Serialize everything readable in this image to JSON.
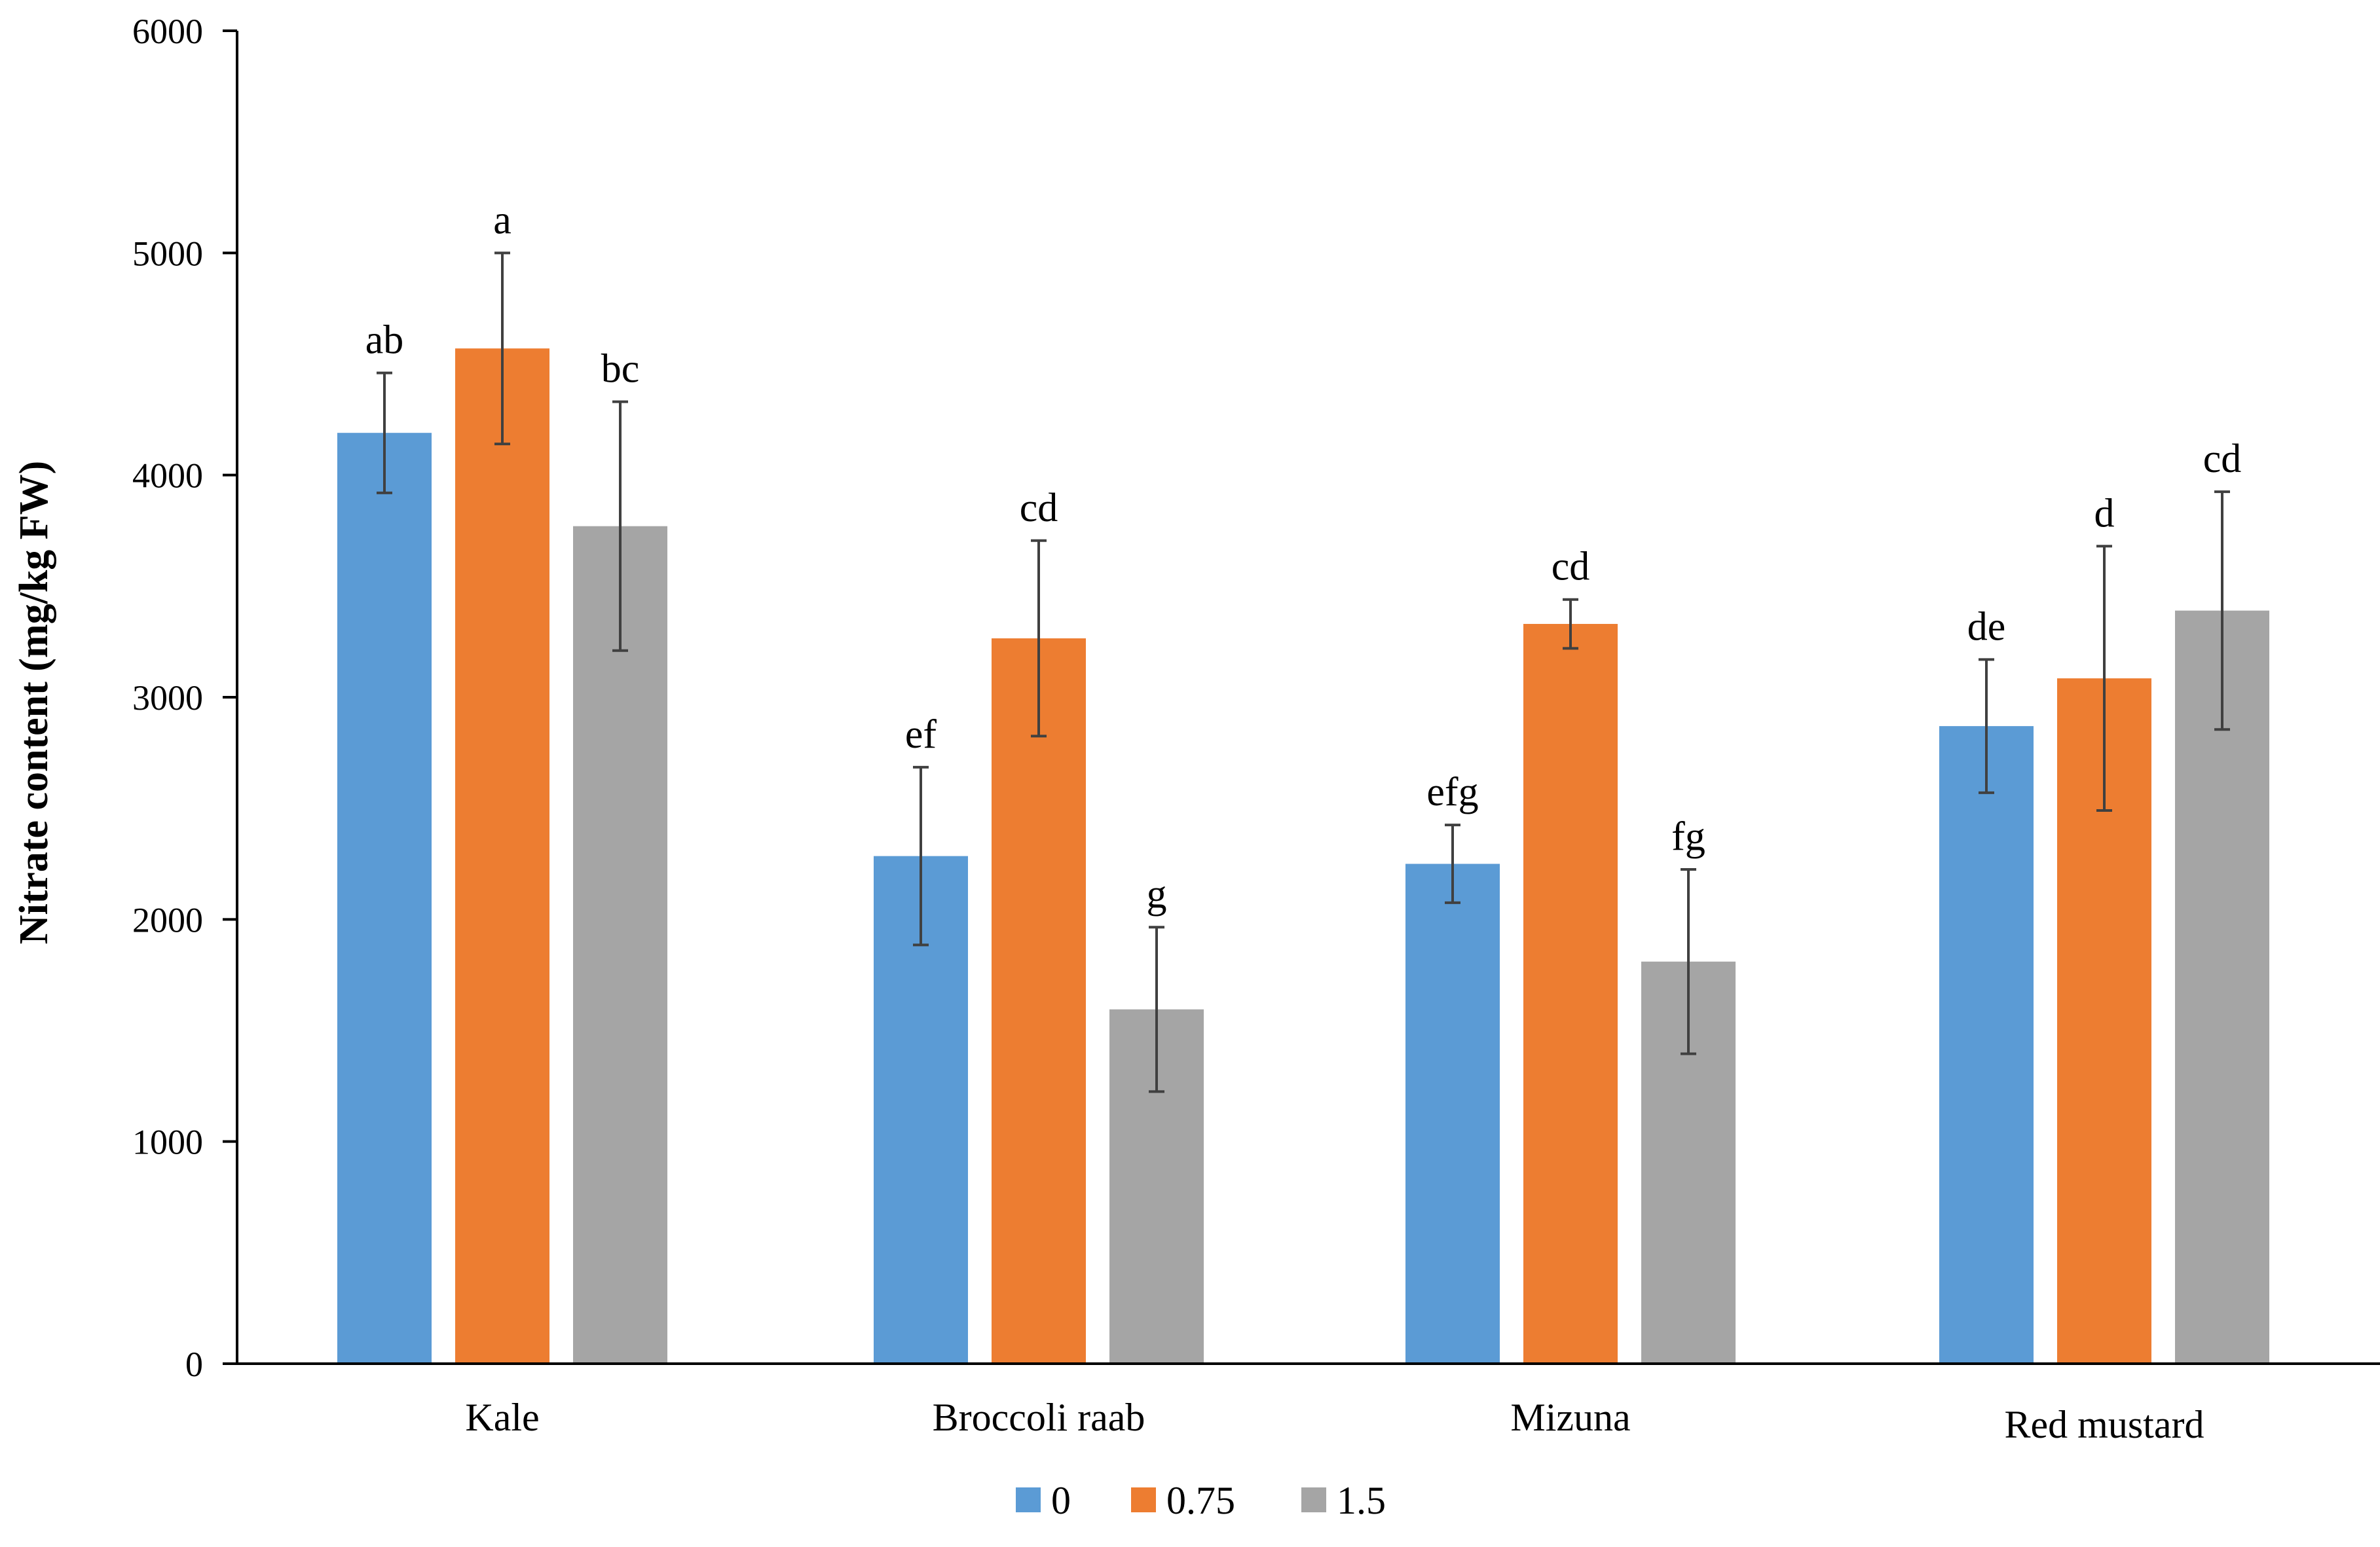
{
  "chart_data": {
    "type": "bar",
    "title": "",
    "xlabel": "",
    "ylabel": "Nitrate content (mg/kg FW)",
    "ylim": [
      0,
      6000
    ],
    "yticks": [
      0,
      1000,
      2000,
      3000,
      4000,
      5000,
      6000
    ],
    "grid": false,
    "legend_position": "bottom-center",
    "categories": [
      "Kale",
      "Broccoli raab",
      "Mizuna",
      "Red mustard"
    ],
    "series": [
      {
        "name": "0",
        "color": "#5B9BD5",
        "values": [
          4190,
          2285,
          2250,
          2870
        ],
        "errors": [
          270,
          400,
          175,
          300
        ],
        "letters": [
          "ab",
          "ef",
          "efg",
          "de"
        ]
      },
      {
        "name": "0.75",
        "color": "#ED7D31",
        "values": [
          4570,
          3265,
          3330,
          3085
        ],
        "errors": [
          430,
          440,
          110,
          595
        ],
        "letters": [
          "a",
          "cd",
          "cd",
          "d"
        ]
      },
      {
        "name": "1.5",
        "color": "#A5A5A5",
        "values": [
          3770,
          1595,
          1810,
          3390
        ],
        "errors": [
          560,
          370,
          415,
          535
        ],
        "letters": [
          "bc",
          "g",
          "fg",
          "cd"
        ]
      }
    ]
  }
}
